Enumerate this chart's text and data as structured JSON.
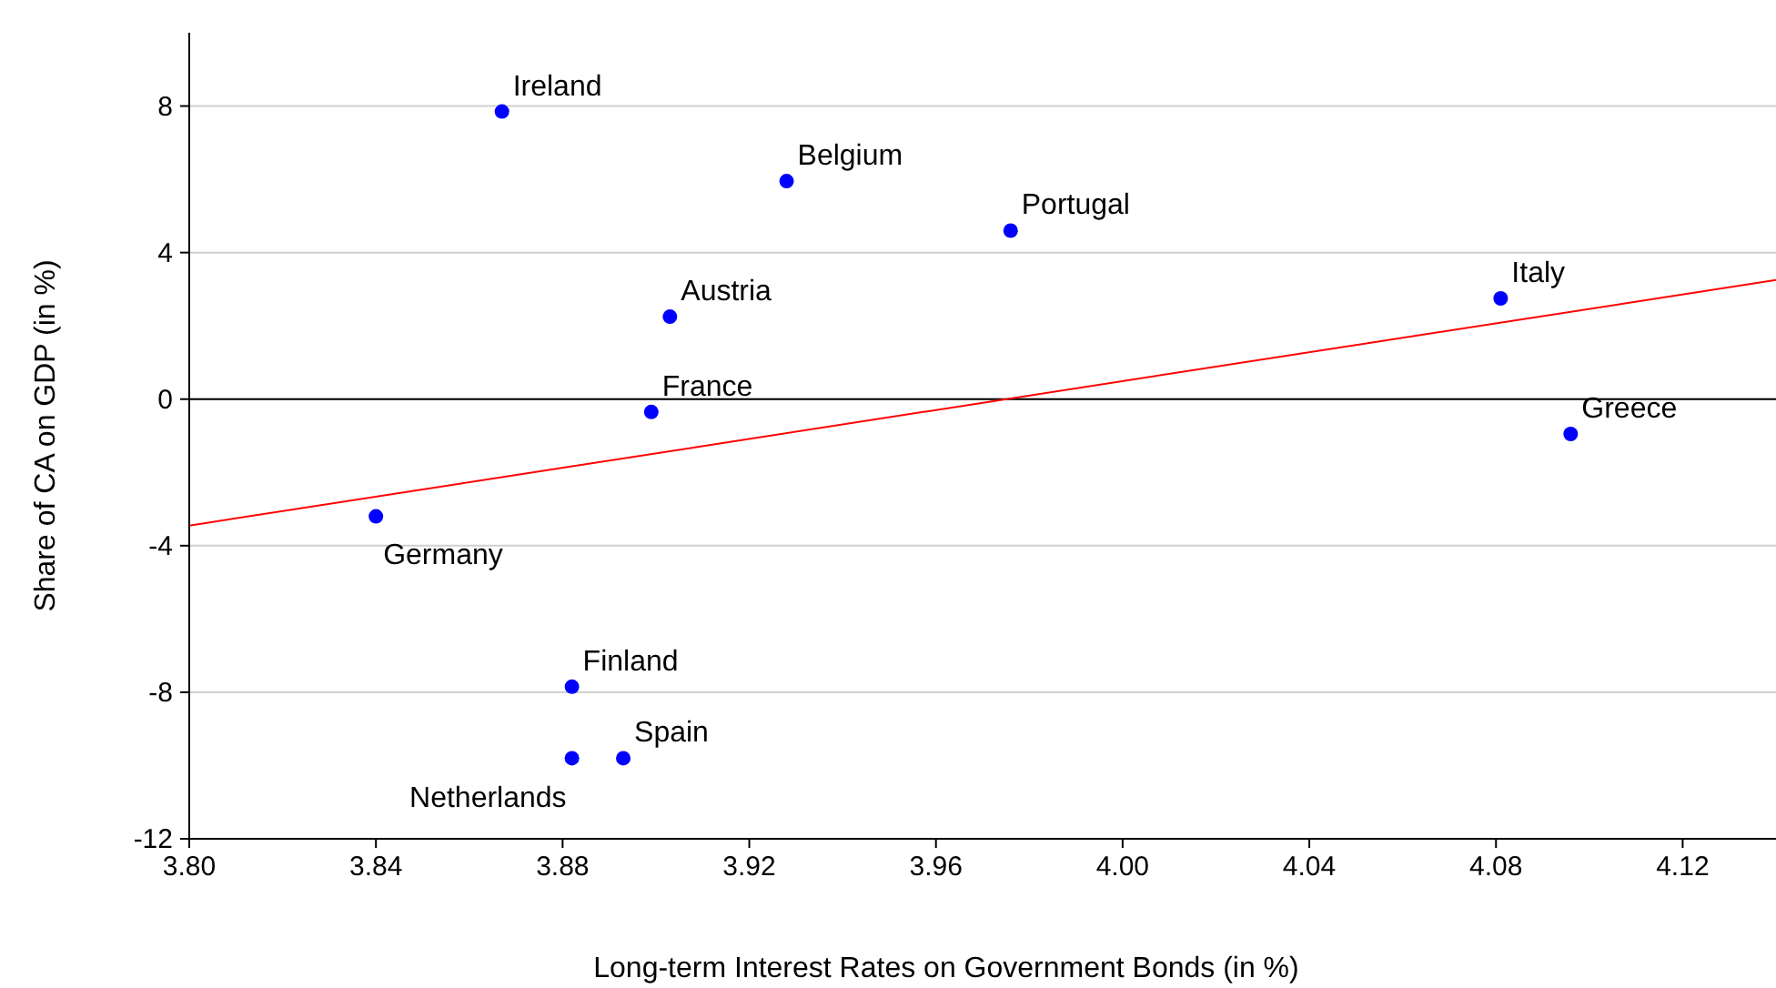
{
  "chart_data": {
    "type": "scatter",
    "xlabel": "Long-term Interest Rates on Government Bonds (in %)",
    "ylabel": "Share of CA on GDP (in %)",
    "xlim": [
      3.8,
      4.14
    ],
    "xticks": [
      {
        "value": 3.8,
        "label": "3.80"
      },
      {
        "value": 3.84,
        "label": "3.84"
      },
      {
        "value": 3.88,
        "label": "3.88"
      },
      {
        "value": 3.92,
        "label": "3.92"
      },
      {
        "value": 3.96,
        "label": "3.96"
      },
      {
        "value": 4.0,
        "label": "4.00"
      },
      {
        "value": 4.04,
        "label": "4.04"
      },
      {
        "value": 4.08,
        "label": "4.08"
      },
      {
        "value": 4.12,
        "label": "4.12"
      }
    ],
    "ylim": [
      -12,
      10
    ],
    "yticks": [
      -12,
      -8,
      -4,
      0,
      4,
      8
    ],
    "grid": "y",
    "marker": "circle",
    "x": [
      3.867,
      3.928,
      3.976,
      3.903,
      4.081,
      3.899,
      4.096,
      3.84,
      3.882,
      3.893,
      3.882
    ],
    "series": [
      {
        "color": "#0000ff",
        "values": [
          7.85,
          5.95,
          4.6,
          2.25,
          2.75,
          -0.35,
          -0.95,
          -3.2,
          -7.85,
          -9.8,
          -9.8
        ]
      },
      {
        "type": "line",
        "color": "#ff0000",
        "marker": "none",
        "x": [
          3.8,
          4.14
        ],
        "values": [
          -3.45,
          3.25
        ]
      }
    ],
    "ref_lines": [
      {
        "axis": "y",
        "value": 0,
        "color": "#000000"
      }
    ],
    "annotations": [
      {
        "text": "Ireland",
        "x": 3.867,
        "y": 7.85
      },
      {
        "text": "Belgium",
        "x": 3.928,
        "y": 5.95
      },
      {
        "text": "Portugal",
        "x": 3.976,
        "y": 4.6
      },
      {
        "text": "Austria",
        "x": 3.903,
        "y": 2.25
      },
      {
        "text": "Italy",
        "x": 4.081,
        "y": 2.75
      },
      {
        "text": "France",
        "x": 3.899,
        "y": -0.35
      },
      {
        "text": "Greece",
        "x": 4.096,
        "y": -0.95
      },
      {
        "text": "Germany",
        "x": 3.84,
        "y": -3.2
      },
      {
        "text": "Finland",
        "x": 3.882,
        "y": -7.85
      },
      {
        "text": "Spain",
        "x": 3.893,
        "y": -9.8
      },
      {
        "text": "Netherlands",
        "x": 3.882,
        "y": -9.8
      }
    ]
  }
}
